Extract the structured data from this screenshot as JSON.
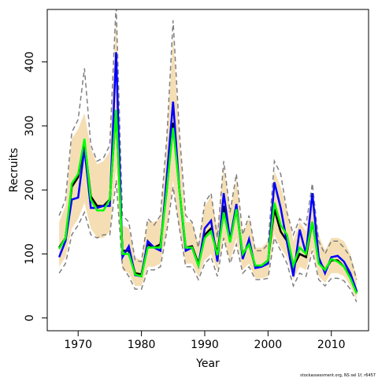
{
  "chart_data": {
    "type": "line",
    "xlabel": "Year",
    "ylabel": "Recruits",
    "footnote": "stockassessment.org, NS sel 1f, r6457",
    "x": [
      1967,
      1968,
      1969,
      1970,
      1971,
      1972,
      1973,
      1974,
      1975,
      1976,
      1977,
      1978,
      1979,
      1980,
      1981,
      1982,
      1983,
      1984,
      1985,
      1986,
      1987,
      1988,
      1989,
      1990,
      1991,
      1992,
      1993,
      1994,
      1995,
      1996,
      1997,
      1998,
      1999,
      2000,
      2001,
      2002,
      2003,
      2004,
      2005,
      2006,
      2007,
      2008,
      2009,
      2010,
      2011,
      2012,
      2013,
      2014
    ],
    "xlim": [
      1965.12,
      2015.88
    ],
    "xticks": [
      1970,
      1980,
      1990,
      2000,
      2010
    ],
    "ylim": [
      -20,
      482
    ],
    "yticks": [
      0,
      100,
      200,
      300,
      400
    ],
    "band": {
      "color": "#f5deb3",
      "lower": [
        80,
        95,
        140,
        155,
        180,
        140,
        125,
        125,
        135,
        235,
        75,
        70,
        50,
        50,
        80,
        80,
        85,
        140,
        215,
        140,
        85,
        85,
        65,
        90,
        100,
        75,
        125,
        90,
        125,
        75,
        85,
        62,
        62,
        65,
        130,
        110,
        95,
        60,
        80,
        75,
        110,
        65,
        55,
        70,
        70,
        65,
        50,
        28
      ],
      "upper": [
        150,
        175,
        280,
        295,
        320,
        265,
        240,
        245,
        260,
        470,
        145,
        140,
        95,
        90,
        150,
        150,
        155,
        275,
        440,
        280,
        150,
        150,
        115,
        175,
        190,
        140,
        235,
        170,
        215,
        130,
        155,
        110,
        110,
        120,
        230,
        205,
        170,
        120,
        150,
        135,
        195,
        130,
        105,
        125,
        125,
        120,
        100,
        65
      ]
    },
    "series": [
      {
        "color": "#808080",
        "dash": true,
        "values": [
          70,
          85,
          130,
          145,
          165,
          130,
          125,
          130,
          130,
          215,
          80,
          65,
          45,
          45,
          75,
          75,
          80,
          135,
          205,
          140,
          80,
          80,
          60,
          85,
          95,
          65,
          125,
          85,
          115,
          70,
          80,
          60,
          60,
          62,
          125,
          105,
          85,
          50,
          70,
          65,
          105,
          60,
          50,
          62,
          62,
          58,
          45,
          25
        ]
      },
      {
        "color": "#808080",
        "dash": true,
        "values": [
          160,
          185,
          290,
          310,
          390,
          270,
          245,
          250,
          270,
          490,
          160,
          150,
          90,
          88,
          155,
          145,
          160,
          280,
          465,
          290,
          160,
          150,
          110,
          180,
          195,
          125,
          245,
          165,
          225,
          130,
          160,
          105,
          105,
          115,
          245,
          225,
          165,
          130,
          155,
          145,
          210,
          120,
          100,
          120,
          120,
          110,
          95,
          60
        ]
      },
      {
        "color": "#000000",
        "values": [
          110,
          125,
          205,
          220,
          275,
          190,
          175,
          175,
          185,
          325,
          105,
          105,
          70,
          68,
          115,
          110,
          115,
          200,
          305,
          200,
          110,
          112,
          85,
          130,
          140,
          100,
          175,
          120,
          170,
          100,
          115,
          80,
          82,
          90,
          170,
          135,
          120,
          80,
          100,
          95,
          150,
          90,
          75,
          90,
          90,
          80,
          65,
          40
        ]
      },
      {
        "color": "#0000ff",
        "values": [
          95,
          120,
          185,
          188,
          265,
          172,
          172,
          175,
          175,
          415,
          95,
          112,
          67,
          65,
          120,
          110,
          105,
          220,
          338,
          200,
          105,
          110,
          82,
          140,
          152,
          88,
          195,
          122,
          178,
          92,
          123,
          78,
          80,
          85,
          212,
          172,
          118,
          65,
          138,
          100,
          195,
          95,
          70,
          95,
          97,
          88,
          70,
          42
        ]
      },
      {
        "color": "#00ff00",
        "values": [
          108,
          125,
          210,
          225,
          280,
          185,
          168,
          168,
          185,
          325,
          100,
          100,
          68,
          65,
          110,
          110,
          110,
          200,
          297,
          200,
          110,
          110,
          82,
          125,
          135,
          98,
          165,
          118,
          170,
          100,
          115,
          82,
          82,
          90,
          180,
          145,
          130,
          82,
          110,
          100,
          150,
          85,
          75,
          92,
          88,
          80,
          62,
          38
        ]
      }
    ]
  }
}
